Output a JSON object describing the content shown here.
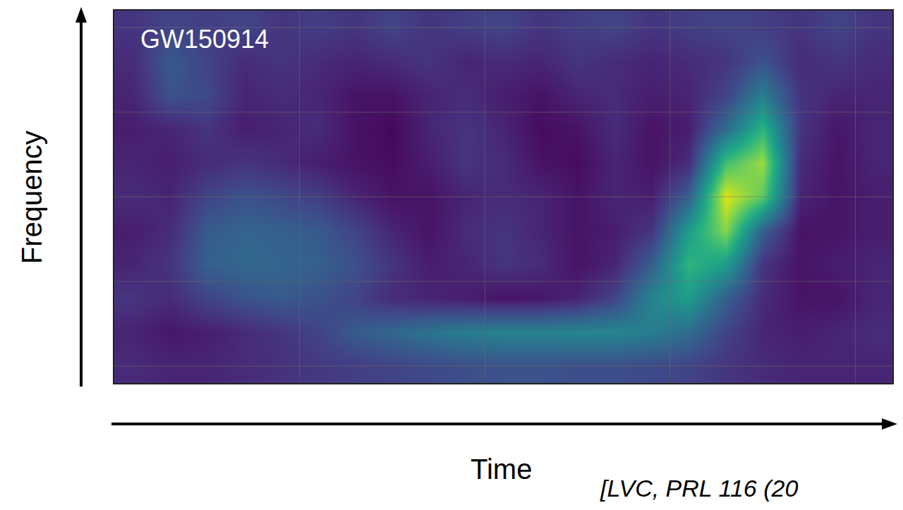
{
  "chart_data": {
    "type": "heatmap",
    "title": "GW150914",
    "x_label": "Time",
    "y_label": "Frequency",
    "annotations": [
      "[LVC, PRL 116 (20"
    ],
    "color": "Viridis",
    "grid": true,
    "tick_labels": false,
    "xlim": [
      0,
      4.2
    ],
    "ylim": [
      -0.2,
      4.2
    ],
    "xticks": [
      1,
      2,
      3,
      4
    ],
    "yticks": [
      0,
      1,
      2,
      3,
      4
    ],
    "zlim": [
      0,
      1
    ],
    "x": [
      0.1,
      0.3,
      0.5,
      0.7,
      0.9,
      1.1,
      1.3,
      1.5,
      1.7,
      1.9,
      2.1,
      2.3,
      2.5,
      2.7,
      2.9,
      3.1,
      3.3,
      3.5,
      3.7,
      3.9,
      4.1
    ],
    "y": [
      0,
      0.4,
      0.8,
      1.2,
      1.6,
      2.0,
      2.4,
      2.8,
      3.2,
      3.6,
      4.0
    ],
    "z": [
      [
        0.12,
        0.1,
        0.1,
        0.12,
        0.14,
        0.16,
        0.18,
        0.2,
        0.22,
        0.24,
        0.25,
        0.25,
        0.24,
        0.24,
        0.22,
        0.2,
        0.15,
        0.12,
        0.1,
        0.1,
        0.1
      ],
      [
        0.1,
        0.06,
        0.08,
        0.12,
        0.15,
        0.2,
        0.28,
        0.33,
        0.38,
        0.42,
        0.44,
        0.44,
        0.45,
        0.45,
        0.42,
        0.35,
        0.2,
        0.1,
        0.08,
        0.1,
        0.12
      ],
      [
        0.15,
        0.12,
        0.2,
        0.25,
        0.28,
        0.25,
        0.2,
        0.12,
        0.1,
        0.08,
        0.05,
        0.06,
        0.1,
        0.2,
        0.45,
        0.55,
        0.3,
        0.12,
        0.05,
        0.05,
        0.1
      ],
      [
        0.1,
        0.15,
        0.3,
        0.33,
        0.32,
        0.3,
        0.25,
        0.15,
        0.08,
        0.1,
        0.15,
        0.12,
        0.05,
        0.1,
        0.3,
        0.65,
        0.55,
        0.15,
        0.05,
        0.08,
        0.1
      ],
      [
        0.08,
        0.12,
        0.28,
        0.32,
        0.3,
        0.28,
        0.2,
        0.1,
        0.05,
        0.12,
        0.15,
        0.1,
        0.05,
        0.08,
        0.15,
        0.55,
        0.82,
        0.3,
        0.05,
        0.05,
        0.08
      ],
      [
        0.12,
        0.1,
        0.2,
        0.25,
        0.22,
        0.18,
        0.1,
        0.05,
        0.05,
        0.1,
        0.12,
        0.1,
        0.05,
        0.1,
        0.08,
        0.3,
        0.95,
        0.75,
        0.1,
        0.05,
        0.08
      ],
      [
        0.1,
        0.08,
        0.12,
        0.15,
        0.12,
        0.08,
        0.05,
        0.03,
        0.08,
        0.15,
        0.12,
        0.05,
        0.03,
        0.1,
        0.05,
        0.12,
        0.7,
        0.85,
        0.12,
        0.05,
        0.1
      ],
      [
        0.08,
        0.1,
        0.15,
        0.08,
        0.1,
        0.12,
        0.05,
        0.02,
        0.1,
        0.15,
        0.1,
        0.03,
        0.05,
        0.12,
        0.05,
        0.08,
        0.35,
        0.65,
        0.15,
        0.06,
        0.1
      ],
      [
        0.1,
        0.25,
        0.22,
        0.1,
        0.12,
        0.1,
        0.05,
        0.05,
        0.1,
        0.12,
        0.08,
        0.05,
        0.1,
        0.12,
        0.08,
        0.1,
        0.2,
        0.42,
        0.15,
        0.1,
        0.1
      ],
      [
        0.12,
        0.28,
        0.2,
        0.12,
        0.15,
        0.12,
        0.1,
        0.12,
        0.15,
        0.1,
        0.12,
        0.1,
        0.15,
        0.12,
        0.1,
        0.12,
        0.15,
        0.25,
        0.12,
        0.15,
        0.12
      ],
      [
        0.15,
        0.2,
        0.18,
        0.2,
        0.15,
        0.18,
        0.15,
        0.2,
        0.15,
        0.18,
        0.2,
        0.15,
        0.18,
        0.2,
        0.15,
        0.18,
        0.2,
        0.18,
        0.15,
        0.2,
        0.15
      ]
    ]
  }
}
